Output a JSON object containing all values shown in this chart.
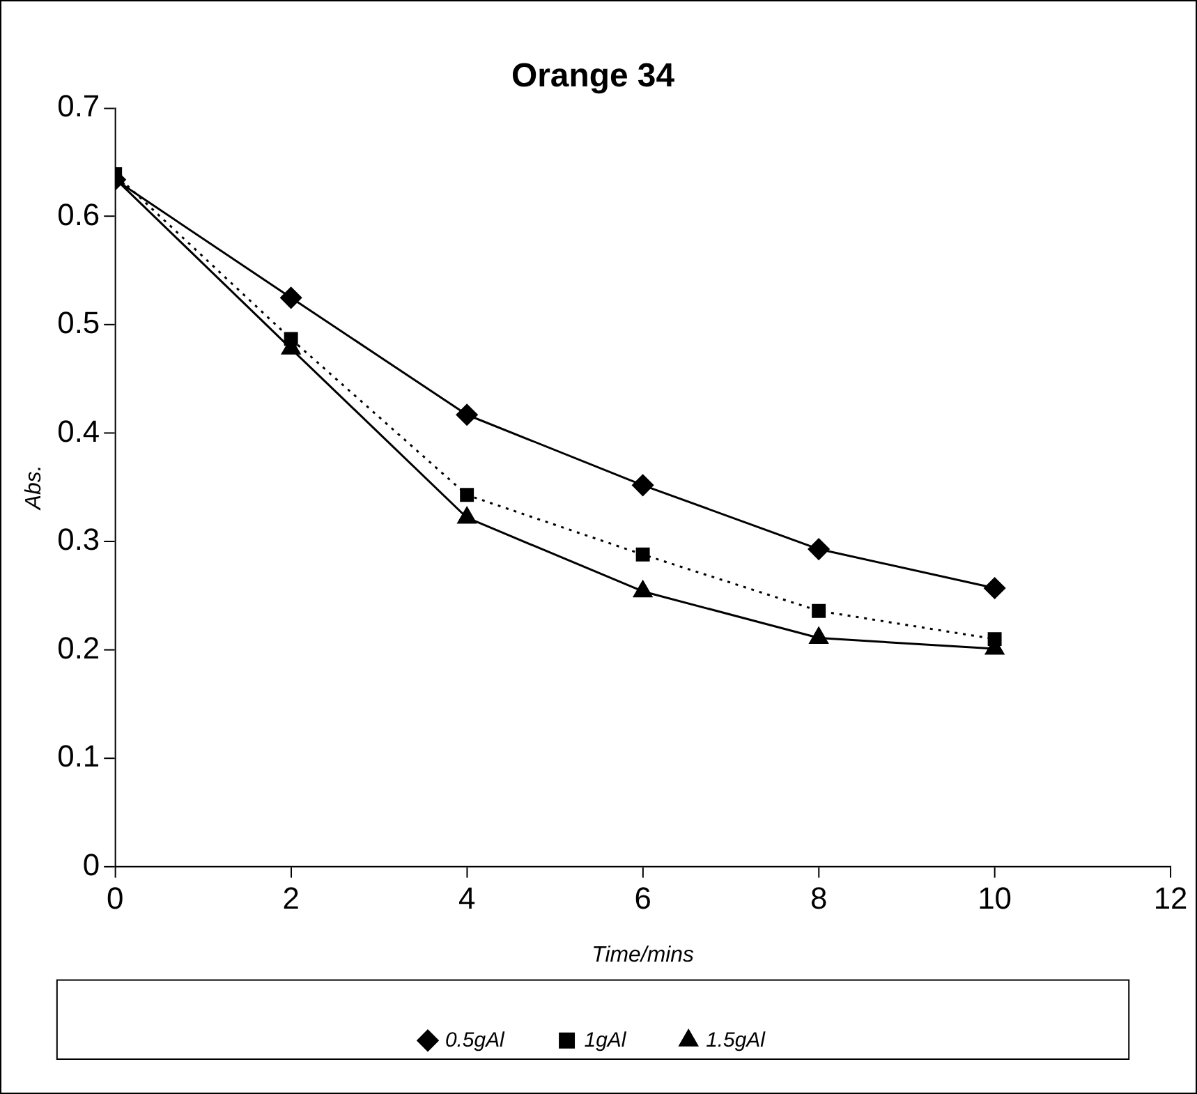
{
  "chart_data": {
    "type": "line",
    "title": "Orange 34",
    "xlabel": "Time/mins",
    "ylabel": "Abs.",
    "x": [
      0,
      2,
      4,
      6,
      8,
      10
    ],
    "series": [
      {
        "name": "0.5gAl",
        "color": "#000000",
        "marker": "diamond",
        "line_style": "solid",
        "values": [
          0.634,
          0.525,
          0.417,
          0.352,
          0.293,
          0.257
        ]
      },
      {
        "name": "1gAl",
        "color": "#000000",
        "marker": "square",
        "line_style": "dotted",
        "values": [
          0.639,
          0.487,
          0.343,
          0.288,
          0.236,
          0.21
        ]
      },
      {
        "name": "1.5gAl",
        "color": "#000000",
        "marker": "triangle",
        "line_style": "solid",
        "values": [
          0.635,
          0.478,
          0.322,
          0.254,
          0.211,
          0.201
        ]
      }
    ],
    "xlim": [
      0,
      12
    ],
    "xticks": [
      0,
      2,
      4,
      6,
      8,
      10,
      12
    ],
    "ylim": [
      0,
      0.7
    ],
    "yticks": [
      0,
      0.1,
      0.2,
      0.3,
      0.4,
      0.5,
      0.6,
      0.7
    ],
    "grid": false,
    "legend": "bottom"
  }
}
